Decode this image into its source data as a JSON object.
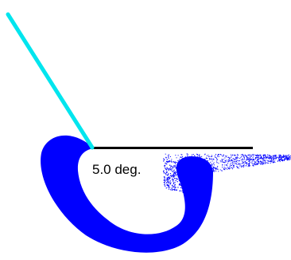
{
  "diagram": {
    "angle_label": "5.0 deg.",
    "colors": {
      "background": "#ffffff",
      "beam": "#00e5ee",
      "baseline": "#000000",
      "spray": "#0000ff",
      "label": "#000000"
    }
  }
}
